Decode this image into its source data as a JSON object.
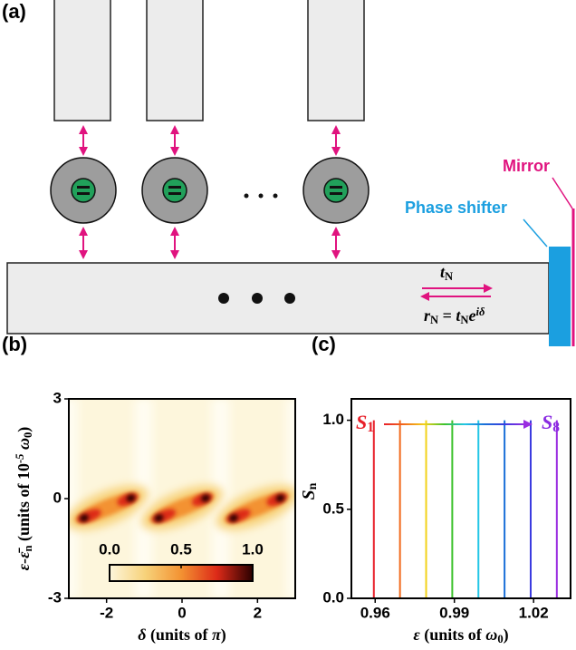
{
  "diagram": {
    "label": "(a)",
    "mirror": "Mirror",
    "phase_shifter": "Phase shifter",
    "t_label": [
      {
        "text": "t",
        "style": "italic"
      },
      {
        "text": "N",
        "style": "sub"
      }
    ],
    "r_label": [
      {
        "text": "r",
        "style": "italic"
      },
      {
        "text": "N",
        "style": "sub"
      },
      {
        "text": " = "
      },
      {
        "text": "t",
        "style": "italic"
      },
      {
        "text": "N",
        "style": "sub"
      },
      {
        "text": "e",
        "style": "italic"
      },
      {
        "text": "iδ",
        "style": "sup"
      }
    ]
  },
  "chart_data": [
    {
      "type": "heatmap",
      "label": "(b)",
      "xlim": [
        -3,
        3
      ],
      "xticks": [
        -2,
        0,
        2
      ],
      "ylim": [
        -3,
        3
      ],
      "yticks": [
        -3,
        0,
        3
      ],
      "xlabel": [
        {
          "text": "δ",
          "style": "italic"
        },
        {
          "text": " (units of "
        },
        {
          "text": "π",
          "style": "italic"
        },
        {
          "text": ")"
        }
      ],
      "ylabel": [
        {
          "text": "ε-ε̄",
          "style": "italic"
        },
        {
          "text": "n",
          "style": "sub"
        },
        {
          "text": " (units of 10"
        },
        {
          "text": "-5",
          "style": "sup"
        },
        {
          "text": " ω",
          "style": "italic"
        },
        {
          "text": "0",
          "style": "sub"
        },
        {
          "text": ")"
        }
      ],
      "colorbar": {
        "lim": [
          0,
          1
        ],
        "ticks": [
          {
            "value": 0,
            "label": "0.0"
          },
          {
            "value": 0.5,
            "label": "0.5"
          },
          {
            "value": 1,
            "label": "1.0"
          }
        ],
        "colors": [
          "#fdf6dc",
          "#f7d27a",
          "#f39232",
          "#dd2a18",
          "#2a0000"
        ]
      }
    },
    {
      "type": "stem",
      "label": "(c)",
      "x": [
        0.9595,
        0.9694,
        0.9793,
        0.9892,
        0.9991,
        1.009,
        1.0189,
        1.0288
      ],
      "values": [
        1.0,
        1.0,
        1.0,
        1.0,
        1.0,
        1.0,
        1.0,
        1.0
      ],
      "colors": [
        "#e8202a",
        "#f26a1b",
        "#f2d21a",
        "#3cc22c",
        "#22c6e6",
        "#1a6fd8",
        "#3a3ae0",
        "#9a2de0"
      ],
      "xlim": [
        0.951,
        1.034
      ],
      "xticks": [
        0.96,
        0.99,
        1.02
      ],
      "ylim": [
        0,
        1.12
      ],
      "yticks": [
        {
          "value": 0,
          "label": "0.0"
        },
        {
          "value": 0.5,
          "label": "0.5"
        },
        {
          "value": 1,
          "label": "1.0"
        }
      ],
      "xlabel": [
        {
          "text": "ε",
          "style": "italic"
        },
        {
          "text": " (units of "
        },
        {
          "text": "ω",
          "style": "italic"
        },
        {
          "text": "0",
          "style": "sub"
        },
        {
          "text": ")"
        }
      ],
      "ylabel": [
        {
          "text": "S",
          "style": "italic"
        },
        {
          "text": "n",
          "style": "sub"
        }
      ],
      "annotations": [
        {
          "parts": [
            {
              "text": "S",
              "style": "italic"
            },
            {
              "text": "1",
              "style": "sub"
            }
          ],
          "color": "#e8202a"
        },
        {
          "parts": [
            {
              "text": "S",
              "style": "italic"
            },
            {
              "text": "8",
              "style": "sub"
            }
          ],
          "color": "#8a2be2"
        }
      ]
    }
  ]
}
